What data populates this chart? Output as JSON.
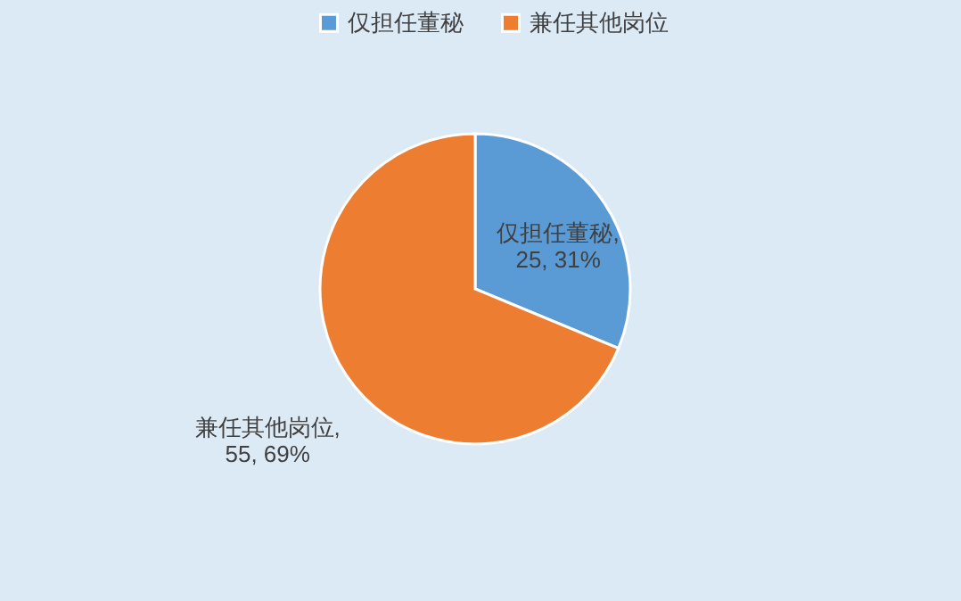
{
  "chart_data": {
    "type": "pie",
    "categories": [
      "仅担任董秘",
      "兼任其他岗位"
    ],
    "values": [
      25,
      55
    ],
    "colors": [
      "#5b9bd5",
      "#ed7d31"
    ],
    "value_labels": [
      "仅担任董秘, 25, 31%",
      "兼任其他岗位, 55, 69%"
    ],
    "legend": "top"
  }
}
